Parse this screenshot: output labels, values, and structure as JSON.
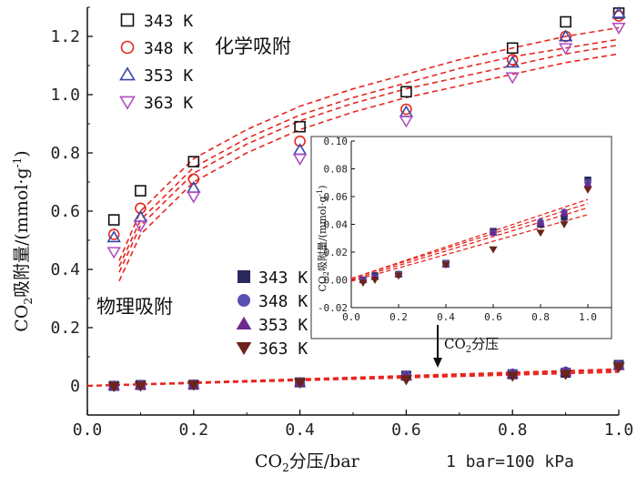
{
  "chart_data": {
    "type": "scatter",
    "xlabel_main": "CO",
    "xlabel_sub": "2",
    "xlabel_rest": "分压/bar",
    "unit_note": "1 bar=100 kPa",
    "ylabel_main": "CO",
    "ylabel_sub": "2",
    "ylabel_rest": "吸附量/(mmol·g",
    "ylabel_sup": "-1",
    "ylabel_end": ")",
    "xlim": [
      0.0,
      1.0
    ],
    "ylim": [
      -0.1,
      1.3
    ],
    "xticks": [
      "0.0",
      "0.2",
      "0.4",
      "0.6",
      "0.8",
      "1.0"
    ],
    "yticks": [
      "0",
      "0.2",
      "0.4",
      "0.6",
      "0.8",
      "1.0",
      "1.2"
    ],
    "chem_title": "化学吸附",
    "phys_title": "物理吸附",
    "chem_series": [
      {
        "name": "343 K",
        "marker": "square-open",
        "color": "#111111",
        "x": [
          0.05,
          0.1,
          0.2,
          0.4,
          0.6,
          0.8,
          0.9,
          1.0
        ],
        "y": [
          0.57,
          0.67,
          0.77,
          0.89,
          1.01,
          1.16,
          1.25,
          1.28
        ]
      },
      {
        "name": "348 K",
        "marker": "circle-open",
        "color": "#e8261f",
        "x": [
          0.05,
          0.1,
          0.2,
          0.4,
          0.6,
          0.8,
          0.9,
          1.0
        ],
        "y": [
          0.52,
          0.61,
          0.71,
          0.84,
          0.95,
          1.12,
          1.2,
          1.27
        ]
      },
      {
        "name": "353 K",
        "marker": "triangle-up-open",
        "color": "#3646a8",
        "x": [
          0.05,
          0.1,
          0.2,
          0.4,
          0.6,
          0.8,
          0.9,
          1.0
        ],
        "y": [
          0.51,
          0.58,
          0.68,
          0.81,
          0.94,
          1.11,
          1.2,
          1.28
        ]
      },
      {
        "name": "363 K",
        "marker": "triangle-down-open",
        "color": "#b04fc0",
        "x": [
          0.05,
          0.1,
          0.2,
          0.4,
          0.6,
          0.8,
          0.9,
          1.0
        ],
        "y": [
          0.46,
          0.55,
          0.65,
          0.78,
          0.91,
          1.06,
          1.16,
          1.23
        ]
      }
    ],
    "chem_fits": [
      {
        "x": [
          0.06,
          0.1,
          0.2,
          0.3,
          0.4,
          0.5,
          0.6,
          0.7,
          0.8,
          0.9,
          1.0
        ],
        "y": [
          0.43,
          0.6,
          0.78,
          0.88,
          0.96,
          1.02,
          1.07,
          1.12,
          1.16,
          1.2,
          1.23
        ]
      },
      {
        "x": [
          0.06,
          0.1,
          0.2,
          0.3,
          0.4,
          0.5,
          0.6,
          0.7,
          0.8,
          0.9,
          1.0
        ],
        "y": [
          0.41,
          0.57,
          0.75,
          0.85,
          0.93,
          0.99,
          1.04,
          1.09,
          1.13,
          1.16,
          1.19
        ]
      },
      {
        "x": [
          0.06,
          0.1,
          0.2,
          0.3,
          0.4,
          0.5,
          0.6,
          0.7,
          0.8,
          0.9,
          1.0
        ],
        "y": [
          0.39,
          0.55,
          0.73,
          0.83,
          0.91,
          0.97,
          1.02,
          1.06,
          1.1,
          1.14,
          1.17
        ]
      },
      {
        "x": [
          0.06,
          0.1,
          0.2,
          0.3,
          0.4,
          0.5,
          0.6,
          0.7,
          0.8,
          0.9,
          1.0
        ],
        "y": [
          0.36,
          0.52,
          0.7,
          0.8,
          0.88,
          0.94,
          0.99,
          1.03,
          1.07,
          1.11,
          1.14
        ]
      }
    ],
    "phys_series": [
      {
        "name": "343 K",
        "marker": "square-filled",
        "color": "#2a2a5e",
        "x": [
          0.05,
          0.1,
          0.2,
          0.4,
          0.6,
          0.8,
          0.9,
          1.0
        ],
        "y": [
          0.0,
          0.003,
          0.004,
          0.012,
          0.035,
          0.04,
          0.045,
          0.072
        ]
      },
      {
        "name": "348 K",
        "marker": "circle-filled",
        "color": "#5a4fb2",
        "x": [
          0.05,
          0.1,
          0.2,
          0.4,
          0.6,
          0.8,
          0.9,
          1.0
        ],
        "y": [
          0.0,
          0.002,
          0.004,
          0.012,
          0.034,
          0.042,
          0.049,
          0.07
        ]
      },
      {
        "name": "353 K",
        "marker": "triangle-up-filled",
        "color": "#6b2a8e",
        "x": [
          0.05,
          0.1,
          0.2,
          0.4,
          0.6,
          0.8,
          0.9,
          1.0
        ],
        "y": [
          0.0,
          0.002,
          0.004,
          0.011,
          0.034,
          0.041,
          0.048,
          0.069
        ]
      },
      {
        "name": "363 K",
        "marker": "triangle-down-filled",
        "color": "#6a2418",
        "x": [
          0.05,
          0.1,
          0.2,
          0.4,
          0.6,
          0.8,
          0.9,
          1.0
        ],
        "y": [
          -0.002,
          0.0,
          0.003,
          0.011,
          0.022,
          0.034,
          0.04,
          0.065
        ]
      }
    ],
    "phys_fits": [
      {
        "x": [
          0.0,
          1.0
        ],
        "y": [
          0.001,
          0.058
        ]
      },
      {
        "x": [
          0.0,
          1.0
        ],
        "y": [
          0.001,
          0.055
        ]
      },
      {
        "x": [
          0.0,
          1.0
        ],
        "y": [
          0.0,
          0.052
        ]
      },
      {
        "x": [
          0.0,
          1.0
        ],
        "y": [
          -0.001,
          0.047
        ]
      }
    ],
    "inset": {
      "xlabel_main": "CO",
      "xlabel_sub": "2",
      "xlabel_rest": "分压",
      "ylabel_main": "CO",
      "ylabel_sub": "2",
      "ylabel_rest": "吸附量/(mmol·g",
      "ylabel_sup": "-1",
      "ylabel_end": ")",
      "xlim": [
        0.0,
        1.1
      ],
      "ylim": [
        -0.02,
        0.1
      ],
      "xticks": [
        "0.0",
        "0.2",
        "0.4",
        "0.6",
        "0.8",
        "1.0"
      ],
      "yticks": [
        "-0.02",
        "0.00",
        "0.02",
        "0.04",
        "0.06",
        "0.08",
        "0.10"
      ]
    },
    "fit_color": "#e8261f"
  }
}
